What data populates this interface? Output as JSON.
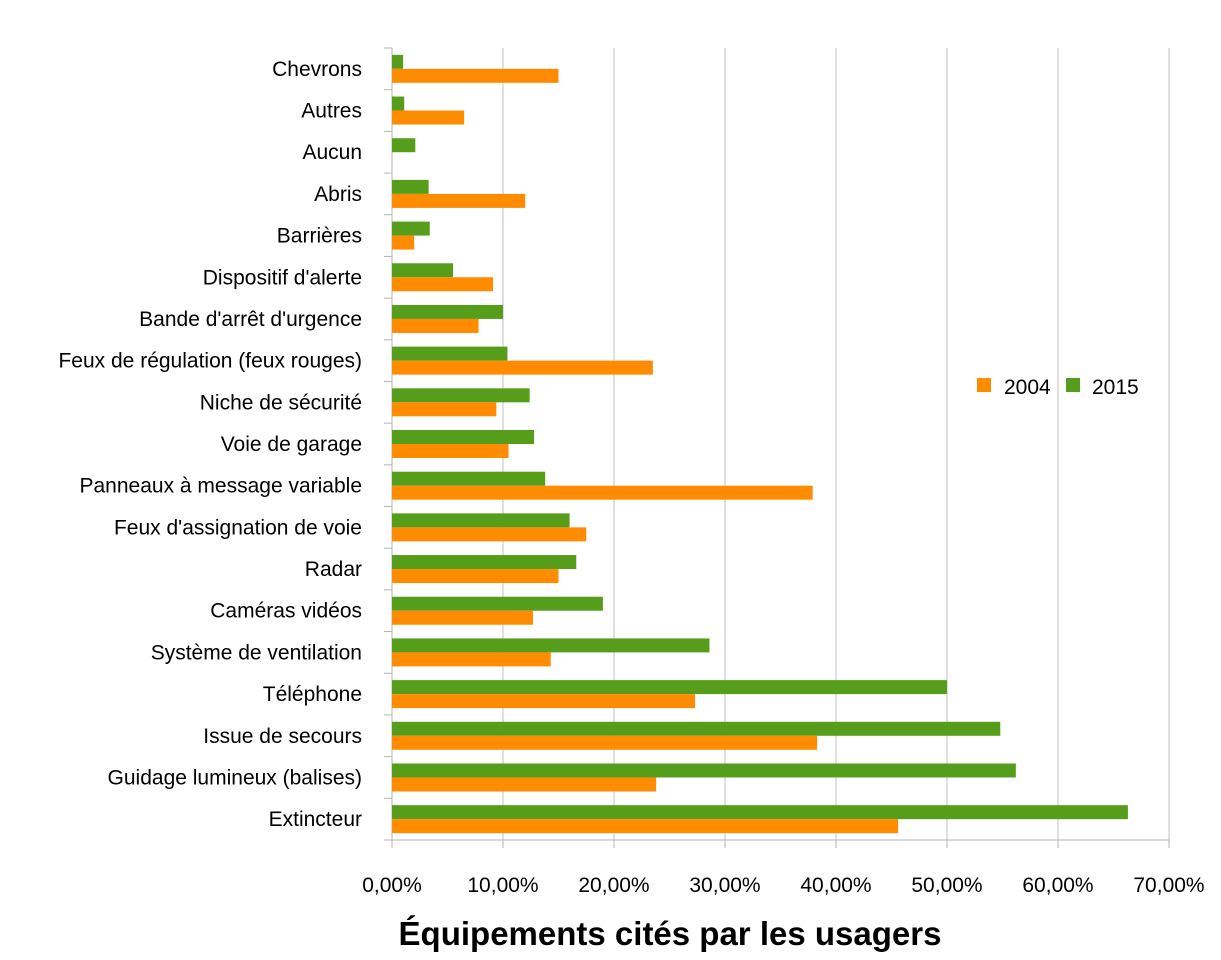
{
  "chart_data": {
    "type": "bar",
    "orientation": "horizontal",
    "title": "Équipements cités par les usagers",
    "xlabel": "",
    "ylabel": "",
    "categories": [
      "Chevrons",
      "Autres",
      "Aucun",
      "Abris",
      "Barrières",
      "Dispositif d'alerte",
      "Bande d'arrêt d'urgence",
      "Feux de régulation (feux rouges)",
      "Niche de sécurité",
      "Voie de garage",
      "Panneaux à message variable",
      "Feux d'assignation de voie",
      "Radar",
      "Caméras vidéos",
      "Système de ventilation",
      "Téléphone",
      "Issue de secours",
      "Guidage lumineux (balises)",
      "Extincteur"
    ],
    "series": [
      {
        "name": "2004",
        "color": "#ff8c00",
        "values": [
          15.0,
          6.5,
          0.0,
          12.0,
          2.0,
          9.1,
          7.8,
          23.5,
          9.4,
          10.5,
          37.9,
          17.5,
          15.0,
          12.7,
          14.3,
          27.3,
          38.3,
          23.8,
          45.6
        ]
      },
      {
        "name": "2015",
        "color": "#579d1c",
        "values": [
          1.0,
          1.1,
          2.1,
          3.3,
          3.4,
          5.5,
          10.0,
          10.4,
          12.4,
          12.8,
          13.8,
          16.0,
          16.6,
          19.0,
          28.6,
          50.0,
          54.8,
          56.2,
          66.3
        ]
      }
    ],
    "xlim": [
      0,
      70
    ],
    "xticks": [
      "0,00%",
      "10,00%",
      "20,00%",
      "30,00%",
      "40,00%",
      "50,00%",
      "60,00%",
      "70,00%"
    ],
    "grid": "vertical",
    "legend": "right"
  }
}
